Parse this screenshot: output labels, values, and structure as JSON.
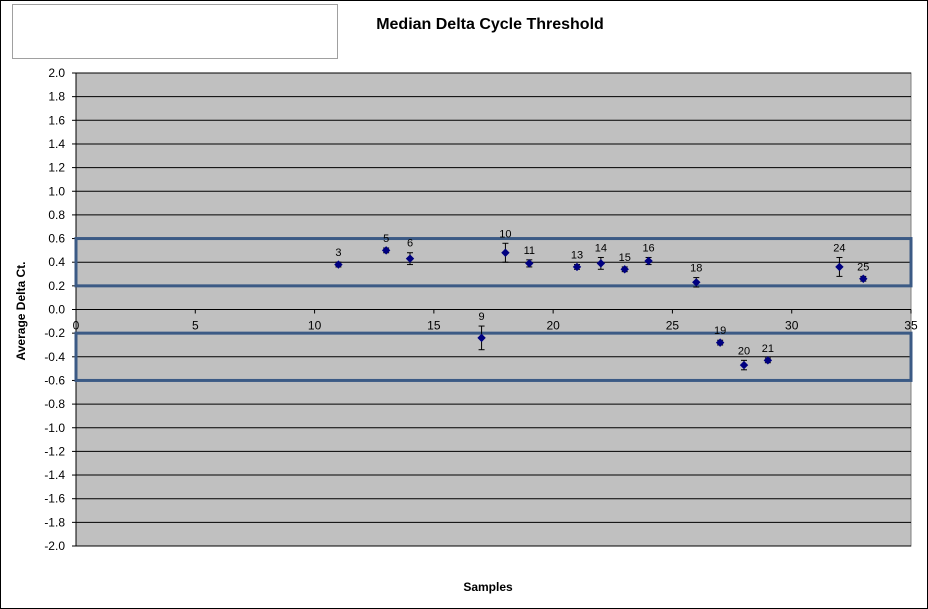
{
  "chart_data": {
    "type": "scatter",
    "title": "Median Delta Cycle Threshold",
    "xlabel": "Samples",
    "ylabel": "Average Delta Ct.",
    "xlim": [
      0,
      35
    ],
    "ylim": [
      -2.0,
      2.0
    ],
    "x_ticks": [
      "0",
      "5",
      "10",
      "15",
      "20",
      "25",
      "30",
      "35"
    ],
    "y_ticks": [
      "2.0",
      "1.8",
      "1.6",
      "1.4",
      "1.2",
      "1.0",
      "0.8",
      "0.6",
      "0.4",
      "0.2",
      "0.0",
      "-0.2",
      "-0.4",
      "-0.6",
      "-0.8",
      "-1.0",
      "-1.2",
      "-1.4",
      "-1.6",
      "-1.8",
      "-2.0"
    ],
    "grid": true,
    "points": [
      {
        "label": "3",
        "x": 11,
        "y": 0.38,
        "err": 0.02
      },
      {
        "label": "5",
        "x": 13,
        "y": 0.5,
        "err": 0.02
      },
      {
        "label": "6",
        "x": 14,
        "y": 0.43,
        "err": 0.05
      },
      {
        "label": "9",
        "x": 17,
        "y": -0.24,
        "err": 0.1
      },
      {
        "label": "10",
        "x": 18,
        "y": 0.48,
        "err": 0.08
      },
      {
        "label": "11",
        "x": 19,
        "y": 0.39,
        "err": 0.03
      },
      {
        "label": "13",
        "x": 21,
        "y": 0.36,
        "err": 0.02
      },
      {
        "label": "14",
        "x": 22,
        "y": 0.39,
        "err": 0.05
      },
      {
        "label": "15",
        "x": 23,
        "y": 0.34,
        "err": 0.02
      },
      {
        "label": "16",
        "x": 24,
        "y": 0.41,
        "err": 0.03
      },
      {
        "label": "18",
        "x": 26,
        "y": 0.23,
        "err": 0.04
      },
      {
        "label": "19",
        "x": 27,
        "y": -0.28,
        "err": 0.02
      },
      {
        "label": "20",
        "x": 28,
        "y": -0.47,
        "err": 0.04
      },
      {
        "label": "21",
        "x": 29,
        "y": -0.43,
        "err": 0.02
      },
      {
        "label": "24",
        "x": 32,
        "y": 0.36,
        "err": 0.08
      },
      {
        "label": "25",
        "x": 33,
        "y": 0.26,
        "err": 0.02
      }
    ],
    "highlight_bands": [
      {
        "y_from": 0.2,
        "y_to": 0.6
      },
      {
        "y_from": -0.6,
        "y_to": -0.2
      }
    ],
    "colors": {
      "plot_background": "#c0c0c0",
      "marker": "#000080",
      "band_border": "#3b5a85"
    }
  }
}
